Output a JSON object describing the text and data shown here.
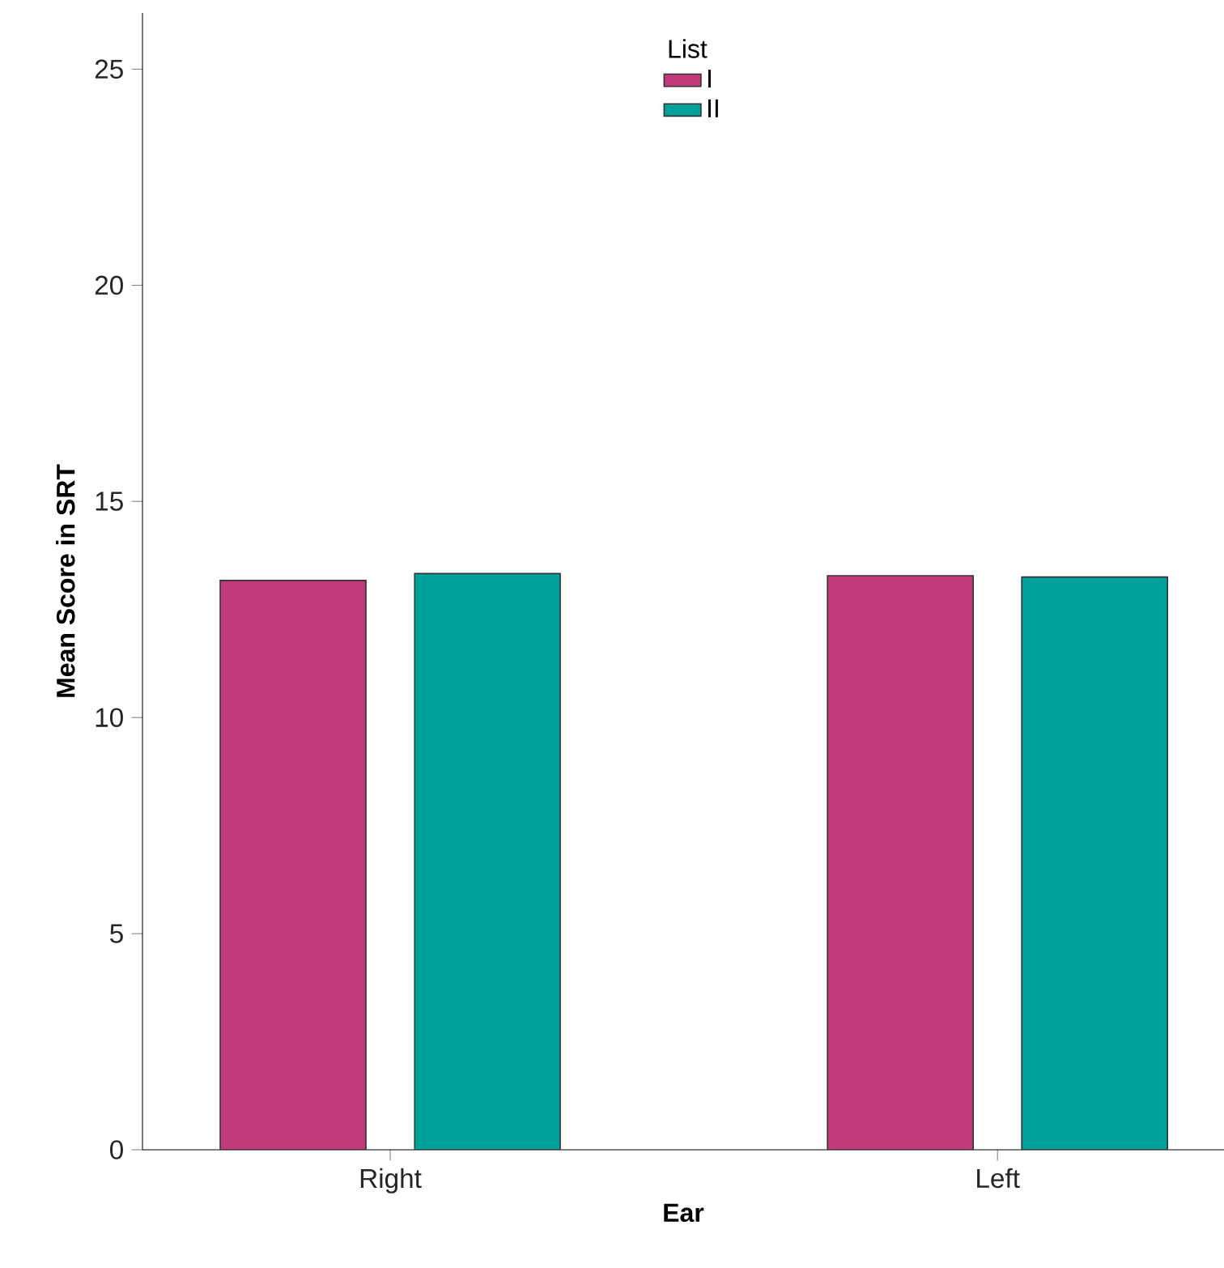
{
  "chart_data": {
    "type": "bar",
    "xlabel": "Ear",
    "ylabel": "Mean Score in SRT",
    "legend_title": "List",
    "categories": [
      "Right",
      "Left"
    ],
    "series": [
      {
        "name": "I",
        "color": "#c0397a",
        "values": [
          13.17,
          13.28
        ]
      },
      {
        "name": "II",
        "color": "#00a19a",
        "values": [
          13.33,
          13.25
        ]
      }
    ],
    "ylim": [
      0,
      26.3
    ],
    "yticks": [
      0,
      5,
      10,
      15,
      20,
      25
    ],
    "grid": false,
    "legend": "top"
  }
}
